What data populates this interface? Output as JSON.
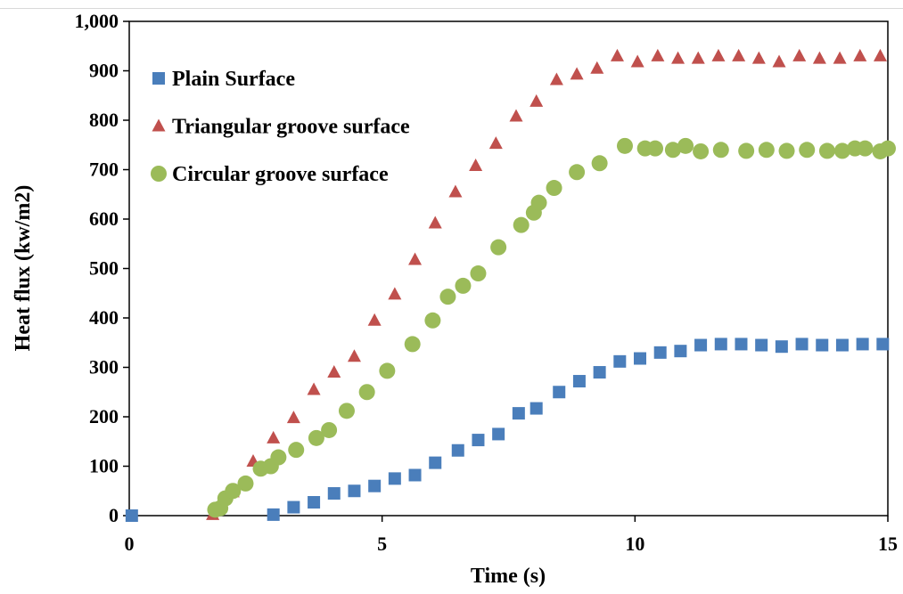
{
  "chart_data": {
    "type": "scatter",
    "title": "",
    "xlabel": "Time (s)",
    "ylabel": "Heat flux (kw/m2)",
    "xlim": [
      0,
      15
    ],
    "ylim": [
      0,
      1000
    ],
    "x_ticks": [
      0,
      5,
      10,
      15
    ],
    "x_tick_labels": [
      "0",
      "5",
      "10",
      "15"
    ],
    "y_ticks": [
      0,
      100,
      200,
      300,
      400,
      500,
      600,
      700,
      800,
      900,
      1000
    ],
    "y_tick_labels": [
      "0",
      "100",
      "200",
      "300",
      "400",
      "500",
      "600",
      "700",
      "800",
      "900",
      "1,000"
    ],
    "grid": false,
    "legend_position": "top-left",
    "series": [
      {
        "name": "Plain Surface",
        "marker": "square",
        "color": "#4a7ebb",
        "points": [
          [
            0.05,
            0
          ],
          [
            2.85,
            2
          ],
          [
            3.25,
            17
          ],
          [
            3.65,
            27
          ],
          [
            4.05,
            45
          ],
          [
            4.45,
            50
          ],
          [
            4.85,
            60
          ],
          [
            5.25,
            75
          ],
          [
            5.65,
            82
          ],
          [
            6.05,
            107
          ],
          [
            6.5,
            132
          ],
          [
            6.9,
            153
          ],
          [
            7.3,
            165
          ],
          [
            7.7,
            207
          ],
          [
            8.05,
            217
          ],
          [
            8.5,
            250
          ],
          [
            8.9,
            272
          ],
          [
            9.3,
            290
          ],
          [
            9.7,
            312
          ],
          [
            10.1,
            318
          ],
          [
            10.5,
            330
          ],
          [
            10.9,
            333
          ],
          [
            11.3,
            345
          ],
          [
            11.7,
            347
          ],
          [
            12.1,
            347
          ],
          [
            12.5,
            345
          ],
          [
            12.9,
            342
          ],
          [
            13.3,
            347
          ],
          [
            13.7,
            345
          ],
          [
            14.1,
            345
          ],
          [
            14.5,
            347
          ],
          [
            14.9,
            347
          ]
        ]
      },
      {
        "name": "Triangular groove surface",
        "marker": "triangle",
        "color": "#c0504d",
        "points": [
          [
            1.65,
            2
          ],
          [
            2.05,
            48
          ],
          [
            2.45,
            110
          ],
          [
            2.85,
            157
          ],
          [
            3.25,
            198
          ],
          [
            3.65,
            255
          ],
          [
            4.05,
            290
          ],
          [
            4.45,
            322
          ],
          [
            4.85,
            395
          ],
          [
            5.25,
            448
          ],
          [
            5.65,
            518
          ],
          [
            6.05,
            592
          ],
          [
            6.45,
            655
          ],
          [
            6.85,
            708
          ],
          [
            7.25,
            753
          ],
          [
            7.65,
            808
          ],
          [
            8.05,
            838
          ],
          [
            8.45,
            882
          ],
          [
            8.85,
            893
          ],
          [
            9.25,
            905
          ],
          [
            9.65,
            930
          ],
          [
            10.05,
            918
          ],
          [
            10.45,
            930
          ],
          [
            10.85,
            925
          ],
          [
            11.25,
            925
          ],
          [
            11.65,
            930
          ],
          [
            12.05,
            930
          ],
          [
            12.45,
            925
          ],
          [
            12.85,
            918
          ],
          [
            13.25,
            930
          ],
          [
            13.65,
            925
          ],
          [
            14.05,
            925
          ],
          [
            14.45,
            930
          ],
          [
            14.85,
            930
          ]
        ]
      },
      {
        "name": "Circular groove surface",
        "marker": "circle",
        "color": "#9bbb59",
        "points": [
          [
            1.7,
            12
          ],
          [
            1.8,
            15
          ],
          [
            1.9,
            35
          ],
          [
            2.05,
            50
          ],
          [
            2.3,
            65
          ],
          [
            2.6,
            95
          ],
          [
            2.8,
            100
          ],
          [
            2.95,
            118
          ],
          [
            3.3,
            133
          ],
          [
            3.7,
            157
          ],
          [
            3.95,
            173
          ],
          [
            4.3,
            212
          ],
          [
            4.7,
            250
          ],
          [
            5.1,
            293
          ],
          [
            5.6,
            347
          ],
          [
            6.0,
            395
          ],
          [
            6.3,
            443
          ],
          [
            6.6,
            465
          ],
          [
            6.9,
            490
          ],
          [
            7.3,
            543
          ],
          [
            7.75,
            588
          ],
          [
            8.0,
            613
          ],
          [
            8.1,
            633
          ],
          [
            8.4,
            663
          ],
          [
            8.85,
            695
          ],
          [
            9.3,
            713
          ],
          [
            9.8,
            748
          ],
          [
            10.2,
            743
          ],
          [
            10.4,
            743
          ],
          [
            10.75,
            740
          ],
          [
            11.0,
            748
          ],
          [
            11.3,
            737
          ],
          [
            11.7,
            740
          ],
          [
            12.2,
            738
          ],
          [
            12.6,
            740
          ],
          [
            13.0,
            738
          ],
          [
            13.4,
            740
          ],
          [
            13.8,
            738
          ],
          [
            14.1,
            738
          ],
          [
            14.35,
            743
          ],
          [
            14.55,
            743
          ],
          [
            14.85,
            737
          ],
          [
            15.0,
            743
          ]
        ]
      }
    ]
  }
}
